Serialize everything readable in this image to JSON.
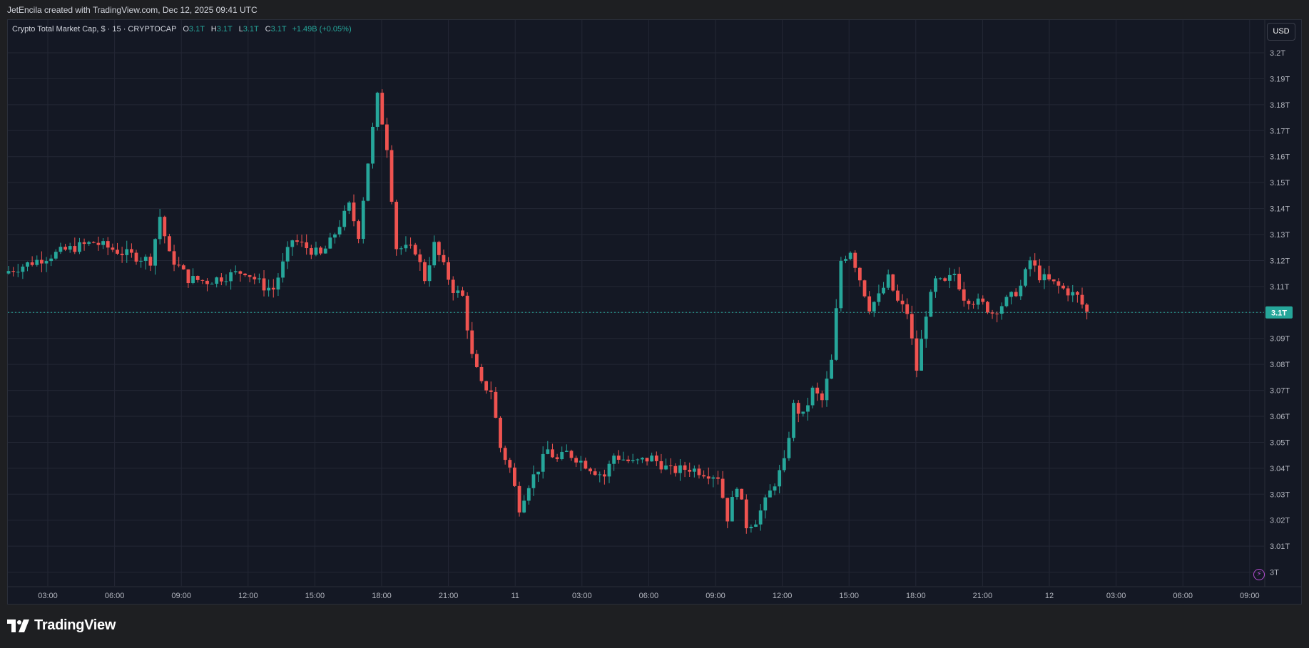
{
  "header": {
    "caption": "JetEncila created with TradingView.com, Dec 12, 2025 09:41 UTC"
  },
  "legend": {
    "symbol": "Crypto Total Market Cap, $ · 15 · CRYPTOCAP",
    "o_label": "O",
    "o_value": "3.1T",
    "h_label": "H",
    "h_value": "3.1T",
    "l_label": "L",
    "l_value": "3.1T",
    "c_label": "C",
    "c_value": "3.1T",
    "change": "+1.49B (+0.05%)"
  },
  "toolbar": {
    "currency": "USD"
  },
  "brand": {
    "name": "TradingView"
  },
  "colors": {
    "up": "#26a69a",
    "down": "#ef5350",
    "background": "#141824",
    "grid": "#232735",
    "price_line": "#26a69a",
    "text": "#b2b5be"
  },
  "icons": {
    "alert": "lightning-bolt-icon",
    "logo": "tradingview-logo-icon"
  },
  "chart_data": {
    "type": "candlestick",
    "title": "Crypto Total Market Cap, $ · 15 · CRYPTOCAP",
    "currency": "USD",
    "y_axis_unit": "T",
    "ylim": [
      2.9975,
      3.2045
    ],
    "y_ticks": [
      "3T",
      "3.01T",
      "3.02T",
      "3.03T",
      "3.04T",
      "3.05T",
      "3.06T",
      "3.07T",
      "3.08T",
      "3.09T",
      "3.1T",
      "3.11T",
      "3.12T",
      "3.13T",
      "3.14T",
      "3.15T",
      "3.16T",
      "3.17T",
      "3.18T",
      "3.19T",
      "3.2T"
    ],
    "x_ticks": [
      "03:00",
      "06:00",
      "09:00",
      "12:00",
      "15:00",
      "18:00",
      "21:00",
      "11",
      "03:00",
      "06:00",
      "09:00",
      "12:00",
      "15:00",
      "18:00",
      "21:00",
      "12",
      "03:00",
      "06:00",
      "09:00"
    ],
    "last_price": 3.1,
    "last_price_label": "3.1T",
    "grid": true,
    "anchors": [
      [
        0,
        3.116
      ],
      [
        6,
        3.12
      ],
      [
        12,
        3.124
      ],
      [
        18,
        3.127
      ],
      [
        24,
        3.123
      ],
      [
        30,
        3.12
      ],
      [
        32,
        3.137
      ],
      [
        34,
        3.122
      ],
      [
        38,
        3.113
      ],
      [
        42,
        3.112
      ],
      [
        50,
        3.116
      ],
      [
        54,
        3.11
      ],
      [
        56,
        3.109
      ],
      [
        60,
        3.128
      ],
      [
        66,
        3.122
      ],
      [
        68,
        3.127
      ],
      [
        72,
        3.141
      ],
      [
        74,
        3.13
      ],
      [
        76,
        3.158
      ],
      [
        78,
        3.183
      ],
      [
        80,
        3.164
      ],
      [
        82,
        3.125
      ],
      [
        86,
        3.124
      ],
      [
        88,
        3.113
      ],
      [
        90,
        3.126
      ],
      [
        94,
        3.109
      ],
      [
        96,
        3.106
      ],
      [
        98,
        3.083
      ],
      [
        100,
        3.072
      ],
      [
        102,
        3.07
      ],
      [
        104,
        3.048
      ],
      [
        106,
        3.04
      ],
      [
        108,
        3.025
      ],
      [
        110,
        3.034
      ],
      [
        112,
        3.04
      ],
      [
        114,
        3.047
      ],
      [
        116,
        3.043
      ],
      [
        118,
        3.046
      ],
      [
        120,
        3.044
      ],
      [
        124,
        3.039
      ],
      [
        126,
        3.037
      ],
      [
        128,
        3.045
      ],
      [
        132,
        3.042
      ],
      [
        136,
        3.044
      ],
      [
        140,
        3.039
      ],
      [
        144,
        3.04
      ],
      [
        150,
        3.037
      ],
      [
        152,
        3.021
      ],
      [
        154,
        3.034
      ],
      [
        156,
        3.018
      ],
      [
        158,
        3.02
      ],
      [
        160,
        3.027
      ],
      [
        164,
        3.042
      ],
      [
        166,
        3.064
      ],
      [
        168,
        3.06
      ],
      [
        170,
        3.07
      ],
      [
        172,
        3.066
      ],
      [
        174,
        3.081
      ],
      [
        176,
        3.12
      ],
      [
        178,
        3.124
      ],
      [
        180,
        3.113
      ],
      [
        182,
        3.102
      ],
      [
        184,
        3.106
      ],
      [
        186,
        3.113
      ],
      [
        188,
        3.104
      ],
      [
        190,
        3.1
      ],
      [
        192,
        3.078
      ],
      [
        194,
        3.1
      ],
      [
        196,
        3.112
      ],
      [
        198,
        3.111
      ],
      [
        200,
        3.115
      ],
      [
        202,
        3.106
      ],
      [
        206,
        3.103
      ],
      [
        208,
        3.1
      ],
      [
        212,
        3.106
      ],
      [
        214,
        3.11
      ],
      [
        216,
        3.12
      ],
      [
        218,
        3.114
      ],
      [
        222,
        3.11
      ],
      [
        226,
        3.106
      ],
      [
        228,
        3.1
      ]
    ]
  }
}
